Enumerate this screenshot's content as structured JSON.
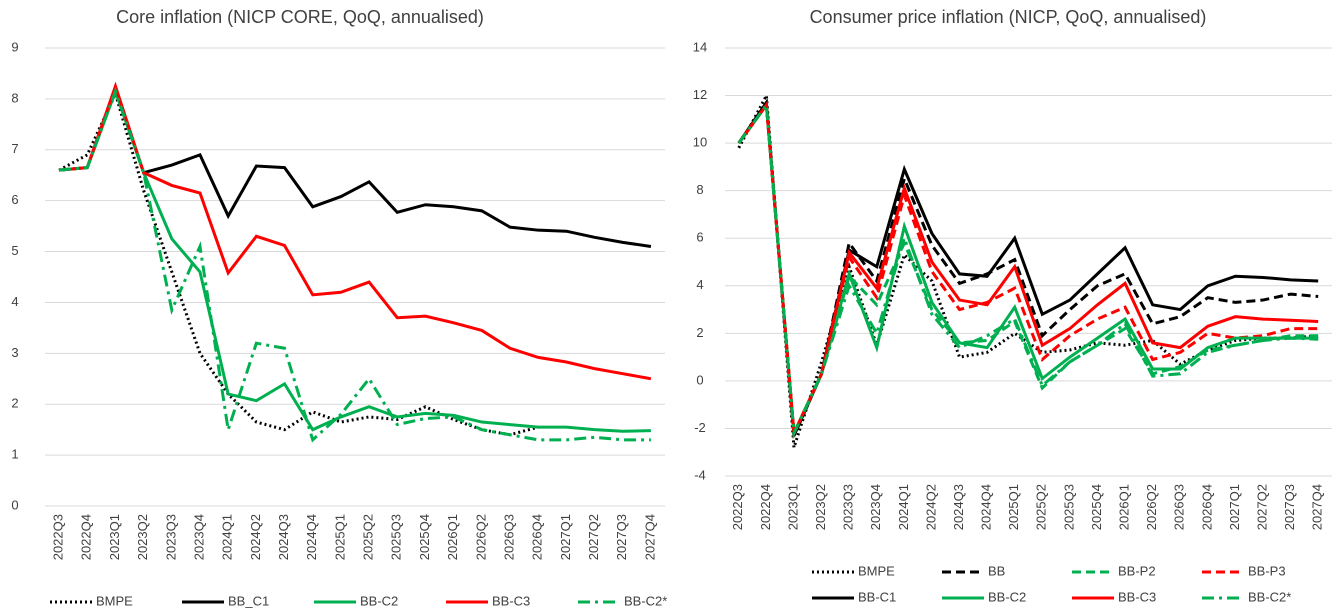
{
  "chart_data": [
    {
      "type": "line",
      "title": "Core inflation (NICP CORE, QoQ, annualised)",
      "categories": [
        "2022Q3",
        "2022Q4",
        "2023Q1",
        "2023Q2",
        "2023Q3",
        "2023Q4",
        "2024Q1",
        "2024Q2",
        "2024Q3",
        "2024Q4",
        "2025Q1",
        "2025Q2",
        "2025Q3",
        "2025Q4",
        "2026Q1",
        "2026Q2",
        "2026Q3",
        "2026Q4",
        "2027Q1",
        "2027Q2",
        "2027Q3",
        "2027Q4"
      ],
      "ylim": [
        0,
        9
      ],
      "yticks": [
        0,
        1,
        2,
        3,
        4,
        5,
        6,
        7,
        8,
        9
      ],
      "grid": true,
      "series": [
        {
          "name": "BMPE",
          "color": "#000000",
          "dash": "dotted",
          "values": [
            6.6,
            6.9,
            8.1,
            6.2,
            4.6,
            3.0,
            2.2,
            1.65,
            1.5,
            1.85,
            1.65,
            1.75,
            1.7,
            1.95,
            1.7,
            1.5,
            1.4,
            1.55,
            null,
            null,
            null,
            null
          ]
        },
        {
          "name": "BB_C1",
          "color": "#000000",
          "dash": "solid",
          "values": [
            6.6,
            6.65,
            8.2,
            6.55,
            6.7,
            6.9,
            5.7,
            6.68,
            6.65,
            5.88,
            6.08,
            6.37,
            5.77,
            5.92,
            5.88,
            5.8,
            5.48,
            5.42,
            5.4,
            5.28,
            5.18,
            5.1
          ]
        },
        {
          "name": "BB-C2",
          "color": "#00b050",
          "dash": "solid",
          "values": [
            6.6,
            6.65,
            8.15,
            6.55,
            5.25,
            4.6,
            2.2,
            2.07,
            2.4,
            1.5,
            1.75,
            1.95,
            1.75,
            1.82,
            1.78,
            1.65,
            1.6,
            1.55,
            1.55,
            1.5,
            1.47,
            1.48
          ]
        },
        {
          "name": "BB-C3",
          "color": "#ff0000",
          "dash": "solid",
          "values": [
            6.6,
            6.65,
            8.25,
            6.55,
            6.3,
            6.15,
            4.58,
            5.3,
            5.12,
            4.15,
            4.2,
            4.4,
            3.7,
            3.73,
            3.6,
            3.45,
            3.1,
            2.92,
            2.83,
            2.7,
            2.6,
            2.5
          ]
        },
        {
          "name": "BB-C2*",
          "color": "#00b050",
          "dash": "dashdot",
          "values": [
            6.6,
            6.65,
            8.15,
            6.55,
            3.85,
            5.1,
            1.5,
            3.2,
            3.1,
            1.3,
            1.8,
            2.5,
            1.6,
            1.72,
            1.75,
            1.5,
            1.4,
            1.3,
            1.3,
            1.35,
            1.3,
            1.3
          ]
        }
      ]
    },
    {
      "type": "line",
      "title": "Consumer price inflation (NICP, QoQ, annualised)",
      "categories": [
        "2022Q3",
        "2022Q4",
        "2023Q1",
        "2023Q2",
        "2023Q3",
        "2023Q4",
        "2024Q1",
        "2024Q2",
        "2024Q3",
        "2024Q4",
        "2025Q1",
        "2025Q2",
        "2025Q3",
        "2025Q4",
        "2026Q1",
        "2026Q2",
        "2026Q3",
        "2026Q4",
        "2027Q1",
        "2027Q2",
        "2027Q3",
        "2027Q4"
      ],
      "ylim": [
        -4,
        14
      ],
      "yticks": [
        -4,
        -2,
        0,
        2,
        4,
        6,
        8,
        10,
        12,
        14
      ],
      "grid": true,
      "series": [
        {
          "name": "BMPE",
          "color": "#000000",
          "dash": "dotted",
          "values": [
            9.8,
            12.0,
            -2.8,
            0.8,
            4.8,
            1.5,
            5.3,
            4.2,
            1.0,
            1.2,
            2.0,
            1.2,
            1.3,
            1.6,
            1.5,
            1.7,
            0.7,
            1.3,
            1.7,
            1.8,
            1.8,
            1.9
          ]
        },
        {
          "name": "BB",
          "color": "#000000",
          "dash": "dashed",
          "values": [
            10,
            11.7,
            -2.3,
            0.3,
            5.8,
            4.2,
            8.5,
            5.7,
            4.1,
            4.5,
            5.1,
            1.9,
            3.0,
            4.0,
            4.5,
            2.4,
            2.7,
            3.5,
            3.3,
            3.4,
            3.65,
            3.55
          ]
        },
        {
          "name": "BB-P2",
          "color": "#00b050",
          "dash": "dashed",
          "values": [
            10,
            11.6,
            -2.2,
            0.3,
            4.4,
            3.2,
            5.8,
            3.0,
            1.6,
            1.7,
            2.5,
            -0.3,
            0.8,
            1.5,
            2.2,
            0.3,
            0.6,
            1.3,
            1.5,
            1.7,
            1.9,
            1.9
          ]
        },
        {
          "name": "BB-P3",
          "color": "#ff0000",
          "dash": "dashed",
          "values": [
            10,
            11.6,
            -2.2,
            0.3,
            5.2,
            3.5,
            7.8,
            4.6,
            3.0,
            3.3,
            3.9,
            0.9,
            1.9,
            2.6,
            3.1,
            0.9,
            1.2,
            2.0,
            1.8,
            1.9,
            2.2,
            2.2
          ]
        },
        {
          "name": "BB-C1",
          "color": "#000000",
          "dash": "solid",
          "values": [
            10,
            11.7,
            -2.3,
            0.3,
            5.5,
            4.8,
            8.9,
            6.2,
            4.5,
            4.4,
            6.0,
            2.8,
            3.4,
            4.5,
            5.6,
            3.2,
            3.0,
            4.0,
            4.4,
            4.35,
            4.25,
            4.2
          ]
        },
        {
          "name": "BB-C2",
          "color": "#00b050",
          "dash": "solid",
          "values": [
            10,
            11.6,
            -2.2,
            0.3,
            4.5,
            1.4,
            6.5,
            3.3,
            1.6,
            1.4,
            3.1,
            0.1,
            1.0,
            1.8,
            2.6,
            0.5,
            0.5,
            1.4,
            1.8,
            1.8,
            1.8,
            1.8
          ]
        },
        {
          "name": "BB-C3",
          "color": "#ff0000",
          "dash": "solid",
          "values": [
            10,
            11.6,
            -2.2,
            0.3,
            5.4,
            3.9,
            8.1,
            5.0,
            3.4,
            3.2,
            4.8,
            1.5,
            2.2,
            3.2,
            4.1,
            1.6,
            1.4,
            2.3,
            2.7,
            2.6,
            2.55,
            2.5
          ]
        },
        {
          "name": "BB-C2*",
          "color": "#00b050",
          "dash": "dashdot",
          "values": [
            10,
            11.6,
            -2.2,
            0.3,
            4.0,
            2.0,
            6.0,
            2.8,
            1.4,
            1.9,
            2.6,
            -0.2,
            0.8,
            1.5,
            2.4,
            0.2,
            0.3,
            1.2,
            1.5,
            1.7,
            1.8,
            1.75
          ]
        }
      ]
    }
  ]
}
